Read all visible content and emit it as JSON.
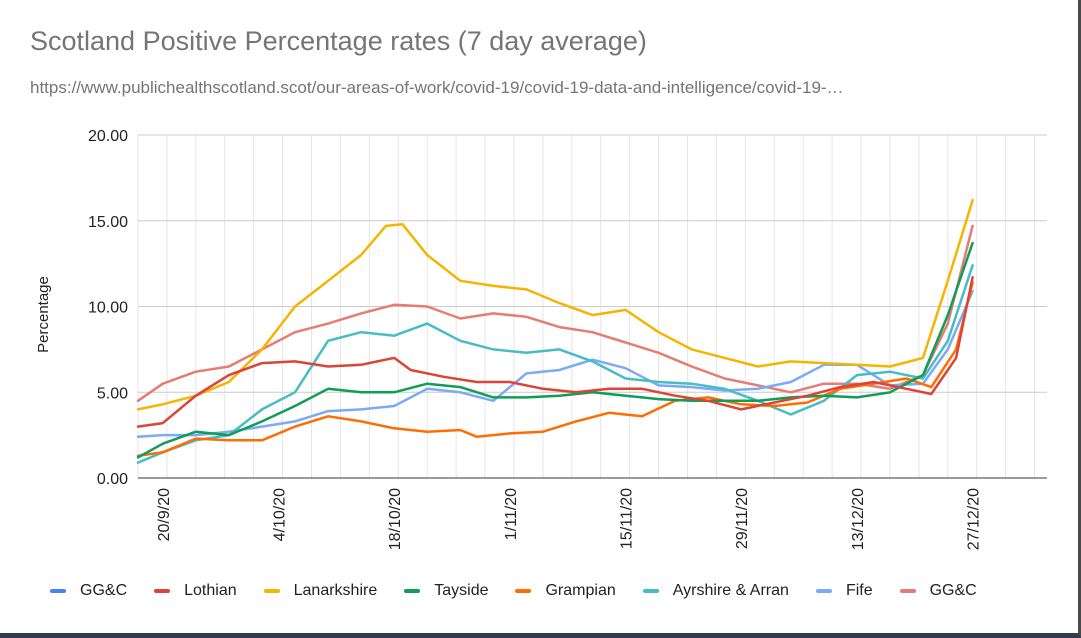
{
  "chart_data": {
    "type": "line",
    "title": "Scotland Positive Percentage rates (7 day average)",
    "subtitle": "https://www.publichealthscotland.scot/our-areas-of-work/covid-19/covid-19-data-and-intelligence/covid-19-…",
    "ylabel": "Percentage",
    "xlabel": "",
    "ylim": [
      0,
      20
    ],
    "yticks": [
      "0.00",
      "5.00",
      "10.00",
      "15.00",
      "20.00"
    ],
    "xlim": [
      "2020-09-17",
      "2021-01-05"
    ],
    "xticks": [
      "20/9/20",
      "4/10/20",
      "18/10/20",
      "1/11/20",
      "15/11/20",
      "29/11/20",
      "13/12/20",
      "27/12/20"
    ],
    "grid": true,
    "legend_position": "bottom",
    "series": [
      {
        "name": "GG&C",
        "color": "#4285f4",
        "x": [],
        "values": []
      },
      {
        "name": "Lothian",
        "color": "#db4437",
        "x": [
          "2020-09-17",
          "2020-09-20",
          "2020-09-24",
          "2020-09-28",
          "2020-10-02",
          "2020-10-06",
          "2020-10-10",
          "2020-10-14",
          "2020-10-18",
          "2020-10-20",
          "2020-10-24",
          "2020-10-28",
          "2020-11-01",
          "2020-11-05",
          "2020-11-09",
          "2020-11-13",
          "2020-11-17",
          "2020-11-21",
          "2020-11-25",
          "2020-11-29",
          "2020-12-03",
          "2020-12-07",
          "2020-12-11",
          "2020-12-15",
          "2020-12-19",
          "2020-12-22",
          "2020-12-25",
          "2020-12-27"
        ],
        "values": [
          3.0,
          3.2,
          4.8,
          6.0,
          6.7,
          6.8,
          6.5,
          6.6,
          7.0,
          6.3,
          5.9,
          5.6,
          5.6,
          5.2,
          5.0,
          5.2,
          5.2,
          4.8,
          4.5,
          4.0,
          4.4,
          4.8,
          5.3,
          5.6,
          5.2,
          4.9,
          7.0,
          11.7
        ]
      },
      {
        "name": "Lanarkshire",
        "color": "#f4b400",
        "x": [
          "2020-09-17",
          "2020-09-20",
          "2020-09-24",
          "2020-09-28",
          "2020-10-02",
          "2020-10-06",
          "2020-10-10",
          "2020-10-14",
          "2020-10-17",
          "2020-10-19",
          "2020-10-22",
          "2020-10-26",
          "2020-10-30",
          "2020-11-03",
          "2020-11-07",
          "2020-11-11",
          "2020-11-15",
          "2020-11-19",
          "2020-11-23",
          "2020-11-27",
          "2020-12-01",
          "2020-12-05",
          "2020-12-09",
          "2020-12-13",
          "2020-12-17",
          "2020-12-21",
          "2020-12-24",
          "2020-12-27"
        ],
        "values": [
          4.0,
          4.3,
          4.8,
          5.6,
          7.5,
          10.0,
          11.5,
          13.0,
          14.7,
          14.8,
          13.0,
          11.5,
          11.2,
          11.0,
          10.2,
          9.5,
          9.8,
          8.5,
          7.5,
          7.0,
          6.5,
          6.8,
          6.7,
          6.6,
          6.5,
          7.0,
          11.5,
          16.2
        ]
      },
      {
        "name": "Tayside",
        "color": "#0f9d58",
        "x": [
          "2020-09-17",
          "2020-09-20",
          "2020-09-24",
          "2020-09-28",
          "2020-10-02",
          "2020-10-06",
          "2020-10-10",
          "2020-10-14",
          "2020-10-18",
          "2020-10-22",
          "2020-10-26",
          "2020-10-30",
          "2020-11-03",
          "2020-11-07",
          "2020-11-11",
          "2020-11-15",
          "2020-11-19",
          "2020-11-23",
          "2020-11-27",
          "2020-12-01",
          "2020-12-05",
          "2020-12-09",
          "2020-12-13",
          "2020-12-17",
          "2020-12-21",
          "2020-12-24",
          "2020-12-27"
        ],
        "values": [
          1.2,
          2.0,
          2.7,
          2.5,
          3.3,
          4.2,
          5.2,
          5.0,
          5.0,
          5.5,
          5.3,
          4.7,
          4.7,
          4.8,
          5.0,
          4.8,
          4.6,
          4.5,
          4.5,
          4.5,
          4.7,
          4.8,
          4.7,
          5.0,
          6.0,
          9.5,
          13.7
        ]
      },
      {
        "name": "Grampian",
        "color": "#ff6d01",
        "x": [
          "2020-09-17",
          "2020-09-20",
          "2020-09-24",
          "2020-09-28",
          "2020-10-02",
          "2020-10-06",
          "2020-10-10",
          "2020-10-14",
          "2020-10-18",
          "2020-10-22",
          "2020-10-26",
          "2020-10-28",
          "2020-11-01",
          "2020-11-05",
          "2020-11-09",
          "2020-11-13",
          "2020-11-17",
          "2020-11-21",
          "2020-11-25",
          "2020-11-29",
          "2020-12-03",
          "2020-12-07",
          "2020-12-11",
          "2020-12-15",
          "2020-12-19",
          "2020-12-22",
          "2020-12-25",
          "2020-12-27"
        ],
        "values": [
          1.3,
          1.5,
          2.3,
          2.2,
          2.2,
          3.0,
          3.6,
          3.3,
          2.9,
          2.7,
          2.8,
          2.4,
          2.6,
          2.7,
          3.3,
          3.8,
          3.6,
          4.5,
          4.7,
          4.3,
          4.2,
          4.4,
          5.2,
          5.5,
          5.8,
          5.3,
          7.5,
          11.4
        ]
      },
      {
        "name": "Ayrshire & Arran",
        "color": "#46bdc6",
        "x": [
          "2020-09-17",
          "2020-09-20",
          "2020-09-24",
          "2020-09-28",
          "2020-10-02",
          "2020-10-06",
          "2020-10-10",
          "2020-10-14",
          "2020-10-18",
          "2020-10-22",
          "2020-10-26",
          "2020-10-30",
          "2020-11-03",
          "2020-11-07",
          "2020-11-11",
          "2020-11-15",
          "2020-11-19",
          "2020-11-23",
          "2020-11-27",
          "2020-12-01",
          "2020-12-05",
          "2020-12-09",
          "2020-12-13",
          "2020-12-17",
          "2020-12-21",
          "2020-12-24",
          "2020-12-27"
        ],
        "values": [
          0.9,
          1.5,
          2.2,
          2.5,
          4.0,
          5.0,
          8.0,
          8.5,
          8.3,
          9.0,
          8.0,
          7.5,
          7.3,
          7.5,
          6.8,
          5.8,
          5.6,
          5.5,
          5.2,
          4.5,
          3.7,
          4.5,
          6.0,
          6.2,
          5.8,
          8.0,
          12.4
        ]
      },
      {
        "name": "Fife",
        "color": "#7baaf7",
        "x": [
          "2020-09-17",
          "2020-09-20",
          "2020-09-24",
          "2020-09-28",
          "2020-10-02",
          "2020-10-06",
          "2020-10-10",
          "2020-10-14",
          "2020-10-18",
          "2020-10-22",
          "2020-10-26",
          "2020-10-30",
          "2020-11-03",
          "2020-11-07",
          "2020-11-11",
          "2020-11-15",
          "2020-11-19",
          "2020-11-23",
          "2020-11-27",
          "2020-12-01",
          "2020-12-05",
          "2020-12-09",
          "2020-12-13",
          "2020-12-17",
          "2020-12-21",
          "2020-12-24",
          "2020-12-27"
        ],
        "values": [
          2.4,
          2.5,
          2.5,
          2.7,
          3.0,
          3.3,
          3.9,
          4.0,
          4.2,
          5.2,
          5.0,
          4.5,
          6.1,
          6.3,
          6.9,
          6.4,
          5.4,
          5.3,
          5.1,
          5.2,
          5.6,
          6.6,
          6.6,
          5.4,
          5.5,
          7.5,
          10.9
        ]
      },
      {
        "name": "GG&C",
        "color": "#e67c73",
        "x": [
          "2020-09-17",
          "2020-09-20",
          "2020-09-24",
          "2020-09-28",
          "2020-10-02",
          "2020-10-06",
          "2020-10-10",
          "2020-10-14",
          "2020-10-18",
          "2020-10-22",
          "2020-10-26",
          "2020-10-30",
          "2020-11-03",
          "2020-11-07",
          "2020-11-11",
          "2020-11-15",
          "2020-11-19",
          "2020-11-23",
          "2020-11-27",
          "2020-12-01",
          "2020-12-05",
          "2020-12-09",
          "2020-12-13",
          "2020-12-17",
          "2020-12-21",
          "2020-12-24",
          "2020-12-27"
        ],
        "values": [
          4.5,
          5.5,
          6.2,
          6.5,
          7.5,
          8.5,
          9.0,
          9.6,
          10.1,
          10.0,
          9.3,
          9.6,
          9.4,
          8.8,
          8.5,
          7.9,
          7.3,
          6.5,
          5.8,
          5.4,
          5.0,
          5.5,
          5.5,
          5.2,
          6.0,
          9.0,
          14.7
        ]
      }
    ]
  }
}
